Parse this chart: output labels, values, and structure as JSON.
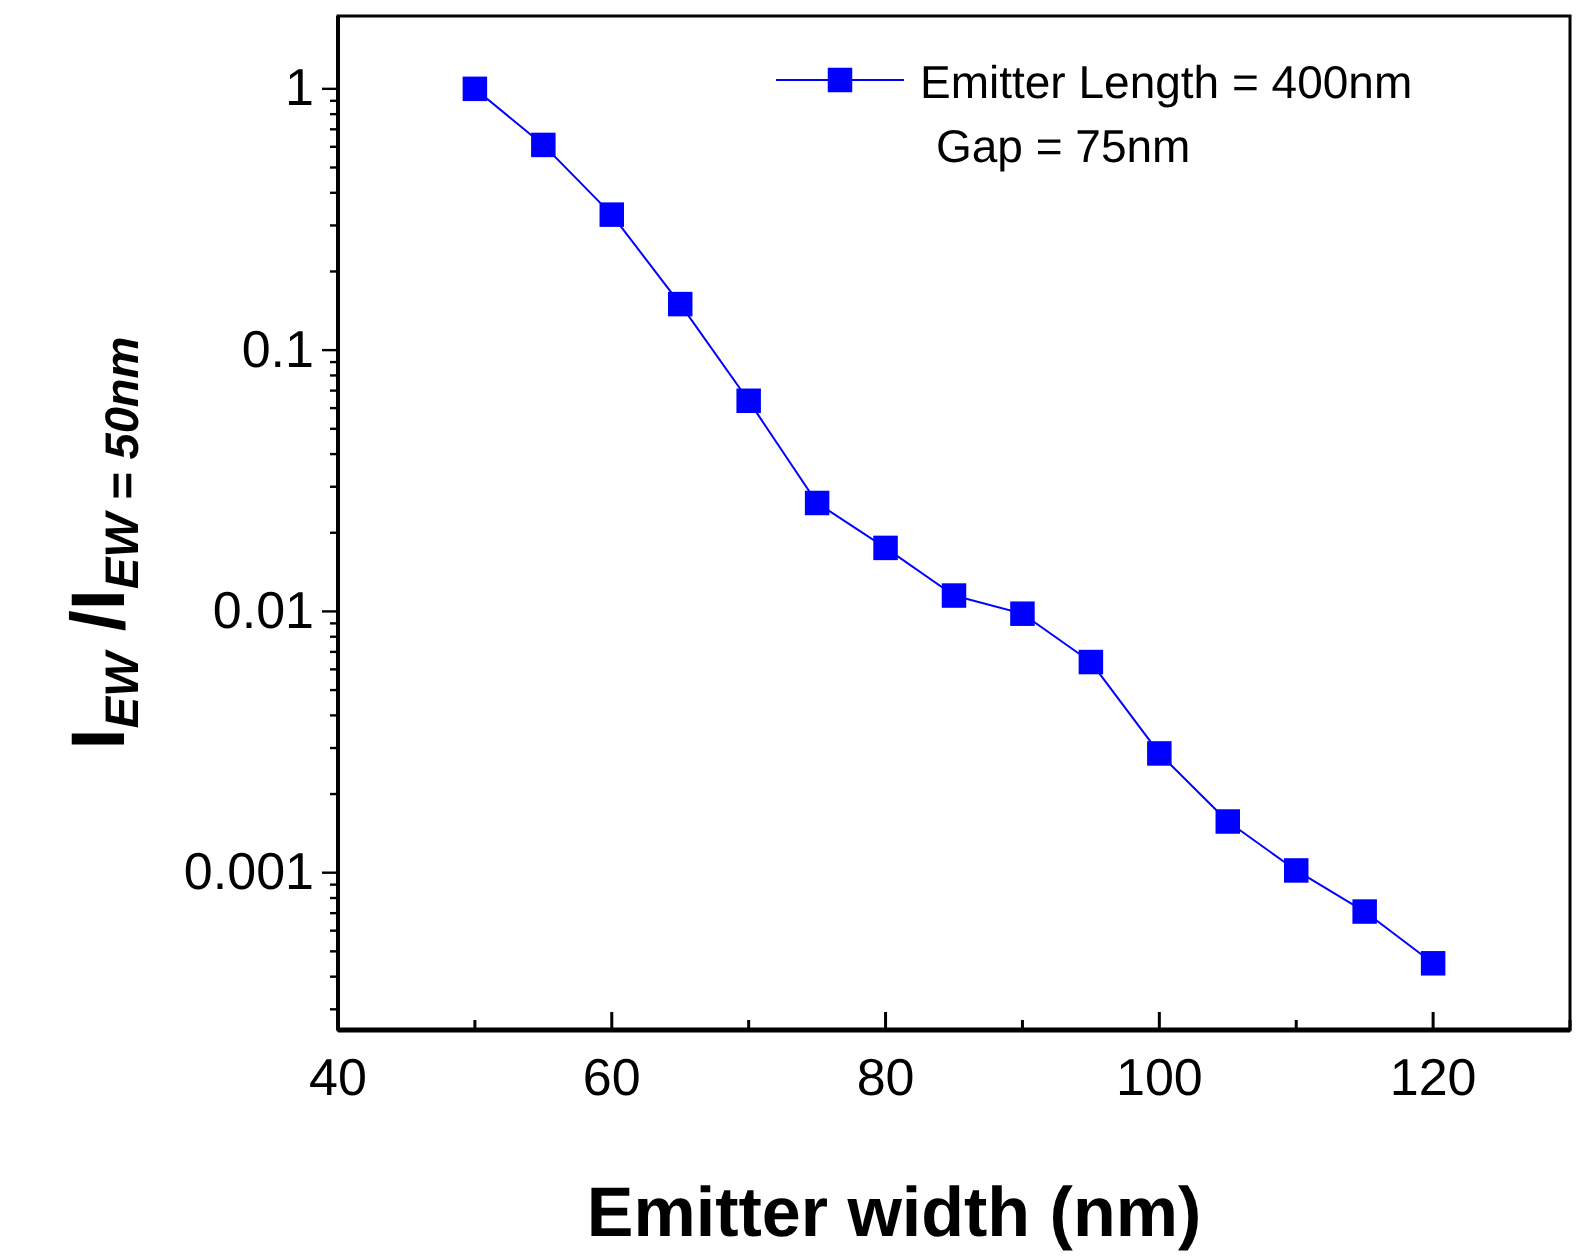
{
  "chart_data": {
    "type": "line",
    "xlabel": "Emitter width (nm)",
    "ylabel": "I$_{EW}$ /I$_{EW = 50nm}$",
    "x": [
      50,
      55,
      60,
      65,
      70,
      75,
      80,
      85,
      90,
      95,
      100,
      105,
      110,
      115,
      120
    ],
    "series": [
      {
        "name": "Emitter Length = 400nm",
        "color": "#0000ff",
        "values": [
          1.0,
          0.61,
          0.33,
          0.15,
          0.064,
          0.026,
          0.0175,
          0.0115,
          0.0098,
          0.0064,
          0.00286,
          0.00157,
          0.00102,
          0.00071,
          0.00045
        ]
      }
    ],
    "annotations": [
      "Gap = 75nm"
    ],
    "log": "y",
    "xlim": [
      40,
      130
    ],
    "ylim": [
      0.00025,
      1.9
    ],
    "xticks": [
      40,
      {
        "value": 50,
        "label": null
      },
      60,
      {
        "value": 70,
        "label": null
      },
      80,
      {
        "value": 90,
        "label": null
      },
      100,
      {
        "value": 110,
        "label": null
      },
      120,
      {
        "value": 130,
        "label": null
      }
    ],
    "yticks": [
      {
        "value": 0.0003,
        "label": null
      },
      {
        "value": 0.0004,
        "label": null
      },
      {
        "value": 0.0005,
        "label": null
      },
      {
        "value": 0.0006,
        "label": null
      },
      {
        "value": 0.0007,
        "label": null
      },
      {
        "value": 0.0008,
        "label": null
      },
      {
        "value": 0.0009,
        "label": null
      },
      0.001,
      {
        "value": 0.002,
        "label": null
      },
      {
        "value": 0.003,
        "label": null
      },
      {
        "value": 0.004,
        "label": null
      },
      {
        "value": 0.005,
        "label": null
      },
      {
        "value": 0.006,
        "label": null
      },
      {
        "value": 0.007,
        "label": null
      },
      {
        "value": 0.008,
        "label": null
      },
      {
        "value": 0.009,
        "label": null
      },
      0.01,
      {
        "value": 0.02,
        "label": null
      },
      {
        "value": 0.03,
        "label": null
      },
      {
        "value": 0.04,
        "label": null
      },
      {
        "value": 0.05,
        "label": null
      },
      {
        "value": 0.06,
        "label": null
      },
      {
        "value": 0.07,
        "label": null
      },
      {
        "value": 0.08,
        "label": null
      },
      {
        "value": 0.09,
        "label": null
      },
      0.1,
      {
        "value": 0.2,
        "label": null
      },
      {
        "value": 0.3,
        "label": null
      },
      {
        "value": 0.4,
        "label": null
      },
      {
        "value": 0.5,
        "label": null
      },
      {
        "value": 0.6,
        "label": null
      },
      {
        "value": 0.7,
        "label": null
      },
      {
        "value": 0.8,
        "label": null
      },
      {
        "value": 0.9,
        "label": null
      },
      1
    ],
    "marker": "square",
    "line_style": "solid",
    "legend": "top right",
    "grid": false
  }
}
